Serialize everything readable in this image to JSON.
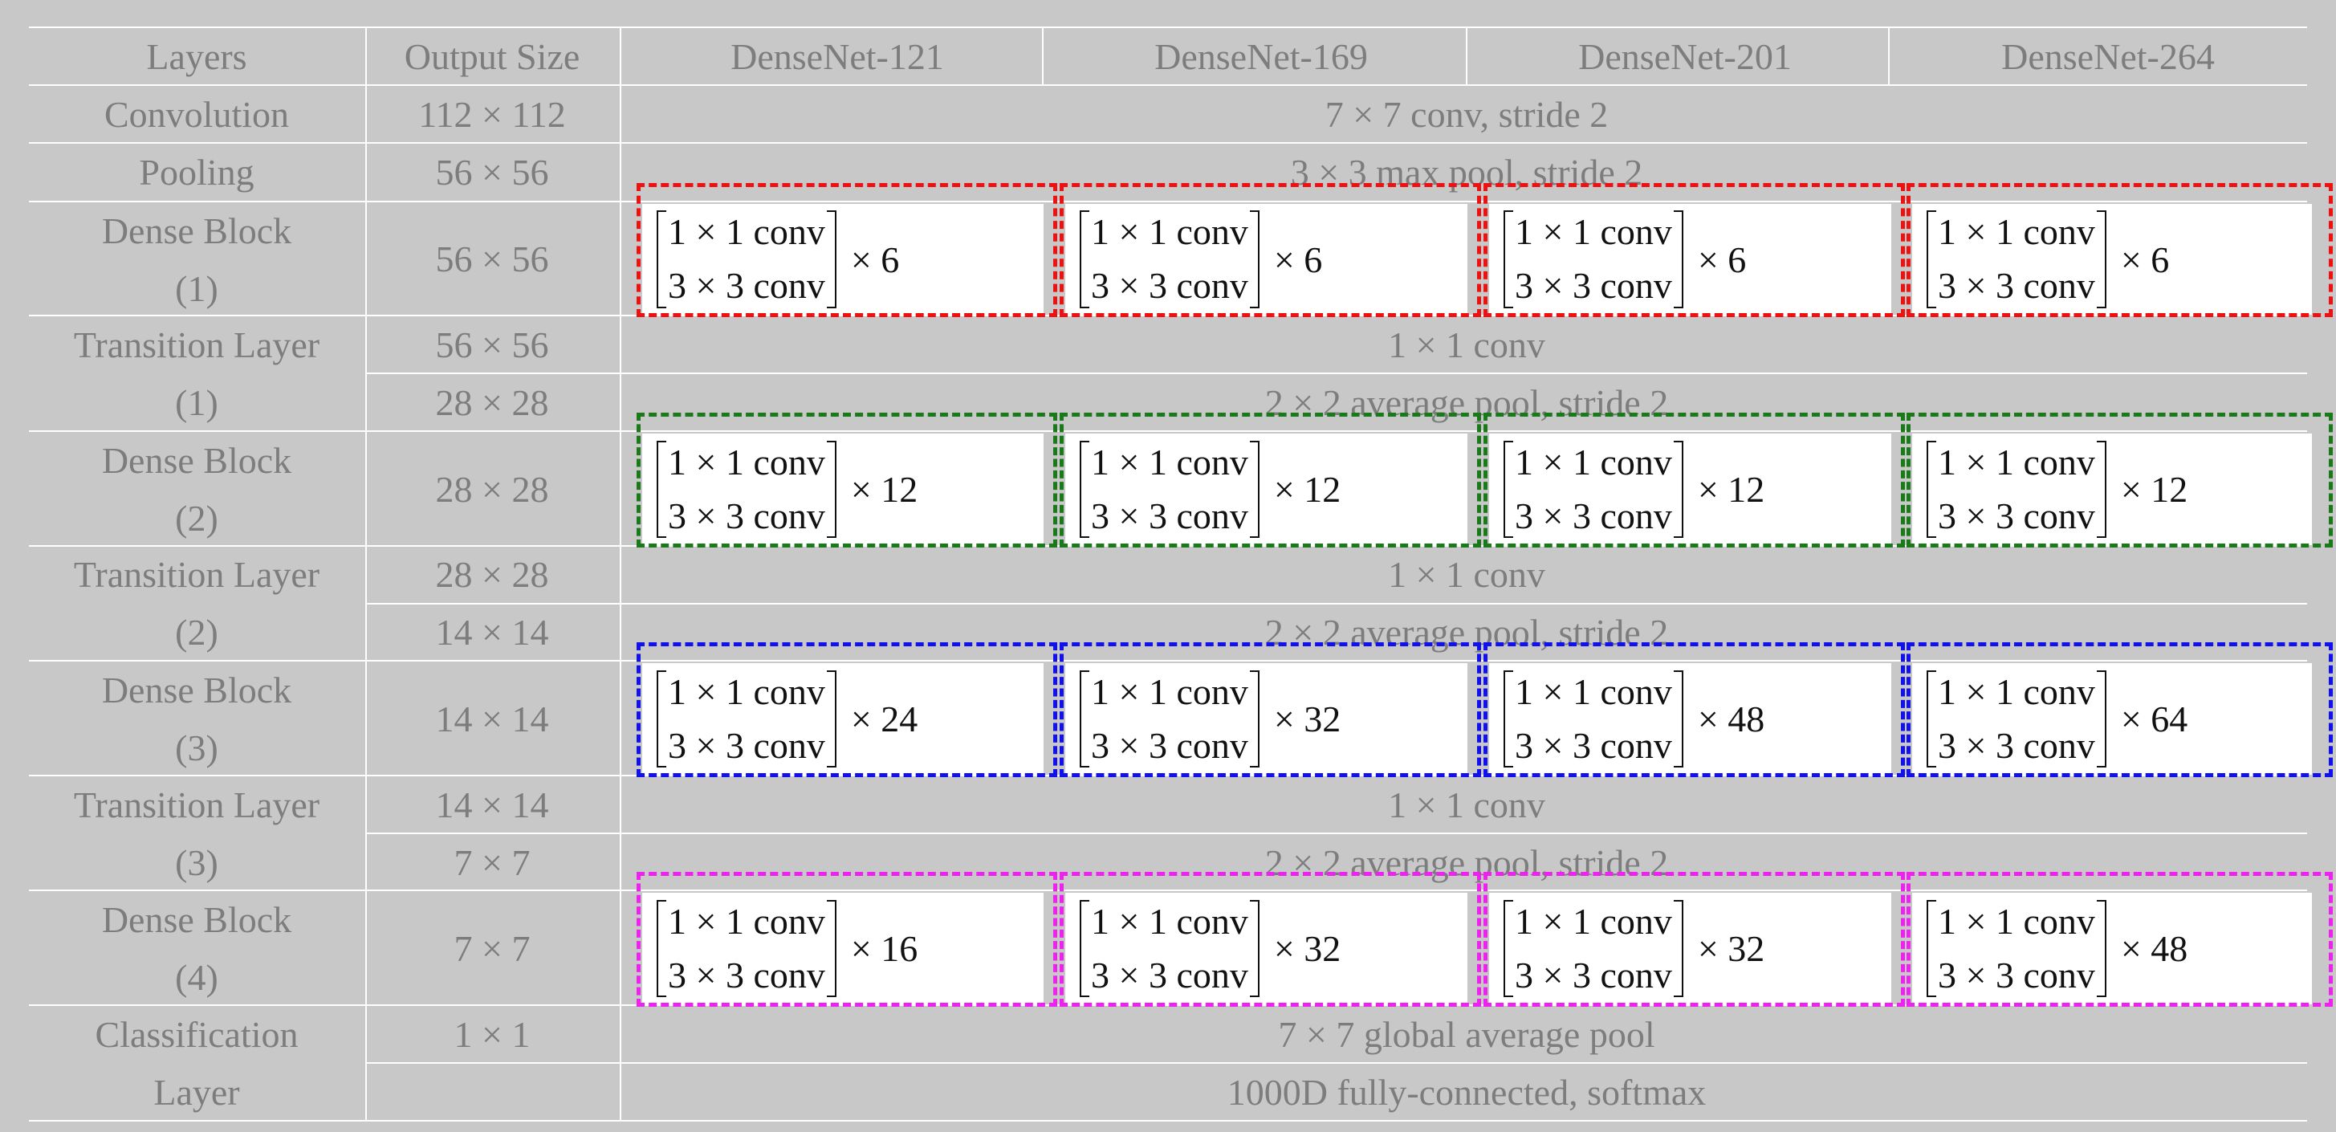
{
  "header": {
    "layers": "Layers",
    "output_size": "Output Size",
    "models": [
      "DenseNet-121",
      "DenseNet-169",
      "DenseNet-201",
      "DenseNet-264"
    ]
  },
  "rows": {
    "conv": {
      "name": "Convolution",
      "size": "112 × 112",
      "op": "7 × 7 conv, stride 2"
    },
    "pool": {
      "name": "Pooling",
      "size": "56 × 56",
      "op": "3 × 3 max pool, stride 2"
    },
    "db1": {
      "name1": "Dense Block",
      "name2": "(1)",
      "size": "56 × 56"
    },
    "tl1": {
      "name1": "Transition Layer",
      "name2": "(1)",
      "size_a": "56 × 56",
      "size_b": "28 × 28",
      "op_a": "1 × 1 conv",
      "op_b": "2 × 2 average pool, stride 2"
    },
    "db2": {
      "name1": "Dense Block",
      "name2": "(2)",
      "size": "28 × 28"
    },
    "tl2": {
      "name1": "Transition Layer",
      "name2": "(2)",
      "size_a": "28 × 28",
      "size_b": "14 × 14",
      "op_a": "1 × 1 conv",
      "op_b": "2 × 2 average pool, stride 2"
    },
    "db3": {
      "name1": "Dense Block",
      "name2": "(3)",
      "size": "14 × 14"
    },
    "tl3": {
      "name1": "Transition Layer",
      "name2": "(3)",
      "size_a": "14 × 14",
      "size_b": "7 × 7",
      "op_a": "1 × 1 conv",
      "op_b": "2 × 2 average pool, stride 2"
    },
    "db4": {
      "name1": "Dense Block",
      "name2": "(4)",
      "size": "7 × 7"
    },
    "cls": {
      "name1": "Classification",
      "name2": "Layer",
      "size": "1 × 1",
      "op_a": "7 × 7 global average pool",
      "op_b": "1000D fully-connected, softmax"
    }
  },
  "block_ops": {
    "line1": "1 × 1 conv",
    "line2": "3 × 3 conv"
  },
  "dense_blocks": [
    {
      "color": "#ee1111",
      "mults": [
        "× 6",
        "× 6",
        "× 6",
        "× 6"
      ]
    },
    {
      "color": "#1a7a1a",
      "mults": [
        "× 12",
        "× 12",
        "× 12",
        "× 12"
      ]
    },
    {
      "color": "#1111ee",
      "mults": [
        "× 24",
        "× 32",
        "× 48",
        "× 64"
      ]
    },
    {
      "color": "#ee22ee",
      "mults": [
        "× 16",
        "× 32",
        "× 32",
        "× 48"
      ]
    }
  ]
}
